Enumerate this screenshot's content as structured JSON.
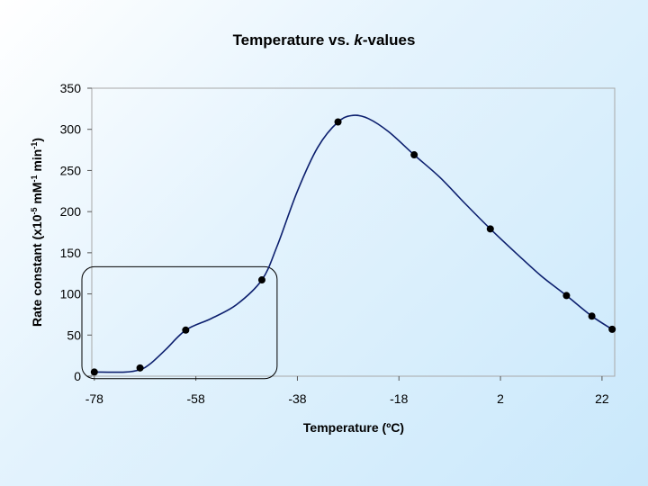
{
  "chart_data": {
    "type": "line",
    "title": {
      "prefix": "Temperature vs. ",
      "italic": "k",
      "suffix": "-values"
    },
    "xlabel": "Temperature (ºC)",
    "ylabel": {
      "prefix": "Rate constant (x10",
      "sup1": "-5",
      "mid": " mM",
      "sup2": "-1",
      "mid2": " min",
      "sup3": "-1",
      "suffix": ")"
    },
    "xlim": [
      -78.5,
      24.5
    ],
    "ylim": [
      0,
      350
    ],
    "xticks": [
      -78,
      -58,
      -38,
      -18,
      2,
      22
    ],
    "yticks": [
      0,
      50,
      100,
      150,
      200,
      250,
      300,
      350
    ],
    "points": [
      {
        "x": -78,
        "y": 5
      },
      {
        "x": -69,
        "y": 10
      },
      {
        "x": -60,
        "y": 56
      },
      {
        "x": -45,
        "y": 117
      },
      {
        "x": -30,
        "y": 309
      },
      {
        "x": -15,
        "y": 269
      },
      {
        "x": 0,
        "y": 179
      },
      {
        "x": 15,
        "y": 98
      },
      {
        "x": 20,
        "y": 73
      },
      {
        "x": 24,
        "y": 57
      }
    ],
    "curve": [
      {
        "x": -78,
        "y": 5
      },
      {
        "x": -72,
        "y": 5
      },
      {
        "x": -69,
        "y": 8
      },
      {
        "x": -67,
        "y": 15
      },
      {
        "x": -64,
        "y": 32
      },
      {
        "x": -60,
        "y": 56
      },
      {
        "x": -55,
        "y": 70
      },
      {
        "x": -50,
        "y": 87
      },
      {
        "x": -45,
        "y": 117
      },
      {
        "x": -42,
        "y": 158
      },
      {
        "x": -38,
        "y": 225
      },
      {
        "x": -34,
        "y": 278
      },
      {
        "x": -30,
        "y": 309
      },
      {
        "x": -27,
        "y": 317
      },
      {
        "x": -24,
        "y": 313
      },
      {
        "x": -20,
        "y": 297
      },
      {
        "x": -15,
        "y": 269
      },
      {
        "x": -10,
        "y": 242
      },
      {
        "x": -5,
        "y": 210
      },
      {
        "x": 0,
        "y": 179
      },
      {
        "x": 5,
        "y": 150
      },
      {
        "x": 10,
        "y": 122
      },
      {
        "x": 15,
        "y": 98
      },
      {
        "x": 20,
        "y": 73
      },
      {
        "x": 24,
        "y": 57
      }
    ],
    "line_color": "#0c1f6e",
    "highlight_region": {
      "x_range": [
        -78.5,
        -42
      ],
      "y_range": [
        -3,
        133
      ]
    }
  }
}
